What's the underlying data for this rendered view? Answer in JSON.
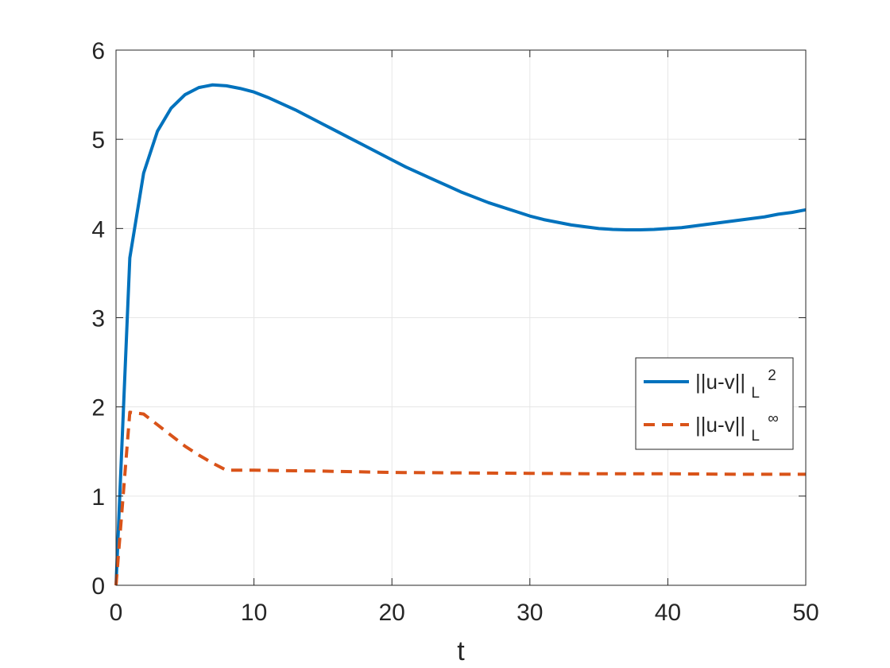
{
  "chart_data": {
    "type": "line",
    "title": "",
    "xlabel": "t",
    "ylabel": "",
    "xlim": [
      0,
      50
    ],
    "ylim": [
      0,
      6
    ],
    "xticks": [
      0,
      10,
      20,
      30,
      40,
      50
    ],
    "yticks": [
      0,
      1,
      2,
      3,
      4,
      5,
      6
    ],
    "grid": true,
    "legend_position": "right, slightly below middle",
    "series": [
      {
        "name": "||u-v||_{L^2}",
        "legend_text": "||u-v||",
        "legend_subscript": "L",
        "legend_superscript": "2",
        "color": "#0072BD",
        "style": "solid",
        "x": [
          0,
          1,
          2,
          3,
          4,
          5,
          6,
          7,
          8,
          9,
          10,
          11,
          12,
          13,
          14,
          15,
          16,
          17,
          18,
          19,
          20,
          21,
          22,
          23,
          24,
          25,
          26,
          27,
          28,
          29,
          30,
          31,
          32,
          33,
          34,
          35,
          36,
          37,
          38,
          39,
          40,
          41,
          42,
          43,
          44,
          45,
          46,
          47,
          48,
          49,
          50
        ],
        "values": [
          0,
          3.67,
          4.62,
          5.09,
          5.35,
          5.5,
          5.58,
          5.61,
          5.6,
          5.57,
          5.53,
          5.47,
          5.4,
          5.33,
          5.25,
          5.17,
          5.09,
          5.01,
          4.93,
          4.85,
          4.77,
          4.69,
          4.62,
          4.55,
          4.48,
          4.41,
          4.35,
          4.29,
          4.24,
          4.19,
          4.14,
          4.1,
          4.07,
          4.04,
          4.02,
          4.0,
          3.99,
          3.985,
          3.985,
          3.99,
          4.0,
          4.01,
          4.03,
          4.05,
          4.07,
          4.09,
          4.11,
          4.13,
          4.16,
          4.18,
          4.21
        ]
      },
      {
        "name": "||u-v||_{L^∞}",
        "legend_text": "||u-v||",
        "legend_subscript": "L",
        "legend_superscript": "∞",
        "color": "#D95319",
        "style": "dashed",
        "x": [
          0,
          1,
          2,
          3,
          4,
          5,
          6,
          7,
          8,
          10,
          15,
          20,
          25,
          30,
          35,
          40,
          45,
          50
        ],
        "values": [
          0,
          1.94,
          1.92,
          1.8,
          1.68,
          1.56,
          1.46,
          1.37,
          1.29,
          1.29,
          1.28,
          1.265,
          1.26,
          1.255,
          1.25,
          1.25,
          1.245,
          1.245
        ]
      }
    ]
  }
}
